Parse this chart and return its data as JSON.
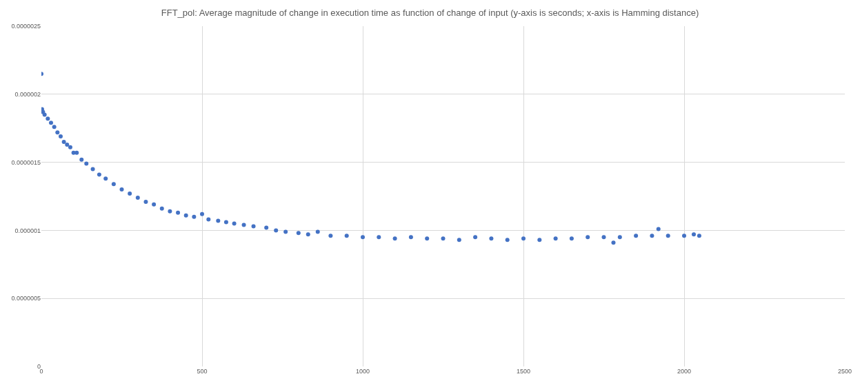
{
  "chart_data": {
    "type": "scatter",
    "title": "FFT_pol: Average magnitude of change in execution time as function of change of input (y-axis is seconds; x-axis is Hamming distance)",
    "x": [
      0,
      2,
      5,
      10,
      20,
      30,
      40,
      50,
      60,
      70,
      80,
      90,
      100,
      110,
      125,
      140,
      160,
      180,
      200,
      225,
      250,
      275,
      300,
      325,
      350,
      375,
      400,
      425,
      450,
      475,
      500,
      520,
      550,
      575,
      600,
      630,
      660,
      700,
      730,
      760,
      800,
      830,
      860,
      900,
      950,
      1000,
      1050,
      1100,
      1150,
      1200,
      1250,
      1300,
      1350,
      1400,
      1450,
      1500,
      1550,
      1600,
      1650,
      1700,
      1750,
      1780,
      1800,
      1850,
      1900,
      1920,
      1950,
      2000,
      2030,
      2047
    ],
    "series": [
      {
        "color": "#4472c4",
        "values": [
          2.15e-06,
          1.89e-06,
          1.87e-06,
          1.85e-06,
          1.82e-06,
          1.79e-06,
          1.76e-06,
          1.72e-06,
          1.69e-06,
          1.65e-06,
          1.63e-06,
          1.61e-06,
          1.57e-06,
          1.57e-06,
          1.52e-06,
          1.49e-06,
          1.45e-06,
          1.41e-06,
          1.38e-06,
          1.34e-06,
          1.3e-06,
          1.27e-06,
          1.24e-06,
          1.21e-06,
          1.19e-06,
          1.16e-06,
          1.14e-06,
          1.13e-06,
          1.11e-06,
          1.1e-06,
          1.12e-06,
          1.08e-06,
          1.07e-06,
          1.06e-06,
          1.05e-06,
          1.04e-06,
          1.03e-06,
          1.02e-06,
          1e-06,
          9.9e-07,
          9.8e-07,
          9.7e-07,
          9.9e-07,
          9.6e-07,
          9.6e-07,
          9.5e-07,
          9.5e-07,
          9.4e-07,
          9.5e-07,
          9.4e-07,
          9.4e-07,
          9.3e-07,
          9.5e-07,
          9.4e-07,
          9.3e-07,
          9.4e-07,
          9.3e-07,
          9.4e-07,
          9.4e-07,
          9.5e-07,
          9.5e-07,
          9.1e-07,
          9.5e-07,
          9.6e-07,
          9.6e-07,
          1.01e-06,
          9.6e-07,
          9.6e-07,
          9.7e-07,
          9.6e-07
        ]
      }
    ],
    "xlim": [
      0,
      2500
    ],
    "xticks": [
      0,
      500,
      1000,
      1500,
      2000,
      2500
    ],
    "ylim": [
      0,
      2.5e-06
    ],
    "yticks": [
      0,
      {
        "value": 5e-07,
        "label": "0.0000005"
      },
      {
        "value": 1e-06,
        "label": "0.000001"
      },
      {
        "value": 1.5e-06,
        "label": "0.0000015"
      },
      {
        "value": 2e-06,
        "label": "0.000002"
      },
      {
        "value": 2.5e-06,
        "label": "0.0000025"
      }
    ],
    "grid": true,
    "marker": "circle"
  }
}
